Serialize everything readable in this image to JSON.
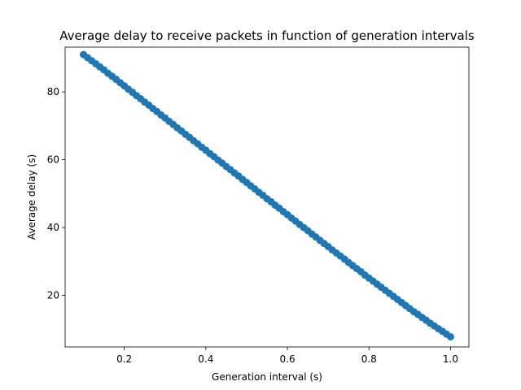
{
  "chart_data": {
    "type": "scatter",
    "title": "Average delay to receive packets in function of generation intervals",
    "xlabel": "Generation interval (s)",
    "ylabel": "Average delay (s)",
    "xlim": [
      0.055,
      1.045
    ],
    "ylim": [
      4.8,
      93.2
    ],
    "x_ticks": [
      0.2,
      0.4,
      0.6,
      0.8,
      1.0
    ],
    "x_tick_labels": [
      "0.2",
      "0.4",
      "0.6",
      "0.8",
      "1.0"
    ],
    "y_ticks": [
      20,
      40,
      60,
      80
    ],
    "y_tick_labels": [
      "20",
      "40",
      "60",
      "80"
    ],
    "grid": false,
    "marker_color": "#1f77b4",
    "x": [
      0.1,
      0.11,
      0.12,
      0.13,
      0.14,
      0.15,
      0.16,
      0.17,
      0.18,
      0.19,
      0.2,
      0.21,
      0.22,
      0.23,
      0.24,
      0.25,
      0.26,
      0.27,
      0.28,
      0.29,
      0.3,
      0.31,
      0.32,
      0.33,
      0.34,
      0.35,
      0.36,
      0.37,
      0.38,
      0.39,
      0.4,
      0.41,
      0.42,
      0.43,
      0.44,
      0.45,
      0.46,
      0.47,
      0.48,
      0.49,
      0.5,
      0.51,
      0.52,
      0.53,
      0.54,
      0.55,
      0.56,
      0.57,
      0.58,
      0.59,
      0.6,
      0.61,
      0.62,
      0.63,
      0.64,
      0.65,
      0.66,
      0.67,
      0.68,
      0.69,
      0.7,
      0.71,
      0.72,
      0.73,
      0.74,
      0.75,
      0.76,
      0.77,
      0.78,
      0.79,
      0.8,
      0.81,
      0.82,
      0.83,
      0.84,
      0.85,
      0.86,
      0.87,
      0.88,
      0.89,
      0.9,
      0.91,
      0.92,
      0.93,
      0.94,
      0.95,
      0.96,
      0.97,
      0.98,
      0.99,
      1.0
    ],
    "y": [
      91.0,
      90.1,
      89.2,
      88.3,
      87.4,
      86.5,
      85.5,
      84.6,
      83.7,
      82.7,
      81.8,
      80.8,
      79.9,
      78.9,
      78.0,
      77.0,
      76.1,
      75.1,
      74.2,
      73.2,
      72.3,
      71.3,
      70.4,
      69.4,
      68.5,
      67.5,
      66.6,
      65.6,
      64.7,
      63.7,
      62.8,
      61.8,
      60.9,
      59.9,
      59.0,
      58.0,
      57.1,
      56.1,
      55.2,
      54.2,
      53.3,
      52.3,
      51.4,
      50.4,
      49.5,
      48.5,
      47.6,
      46.6,
      45.7,
      44.7,
      43.8,
      42.8,
      41.9,
      40.9,
      40.0,
      39.1,
      38.1,
      37.2,
      36.2,
      35.3,
      34.4,
      33.4,
      32.5,
      31.6,
      30.7,
      29.7,
      28.8,
      27.9,
      27.0,
      26.0,
      25.1,
      24.2,
      23.3,
      22.4,
      21.5,
      20.6,
      19.7,
      18.8,
      17.9,
      17.0,
      16.1,
      15.2,
      14.4,
      13.5,
      12.7,
      11.8,
      11.0,
      10.2,
      9.4,
      8.6,
      7.8
    ]
  }
}
